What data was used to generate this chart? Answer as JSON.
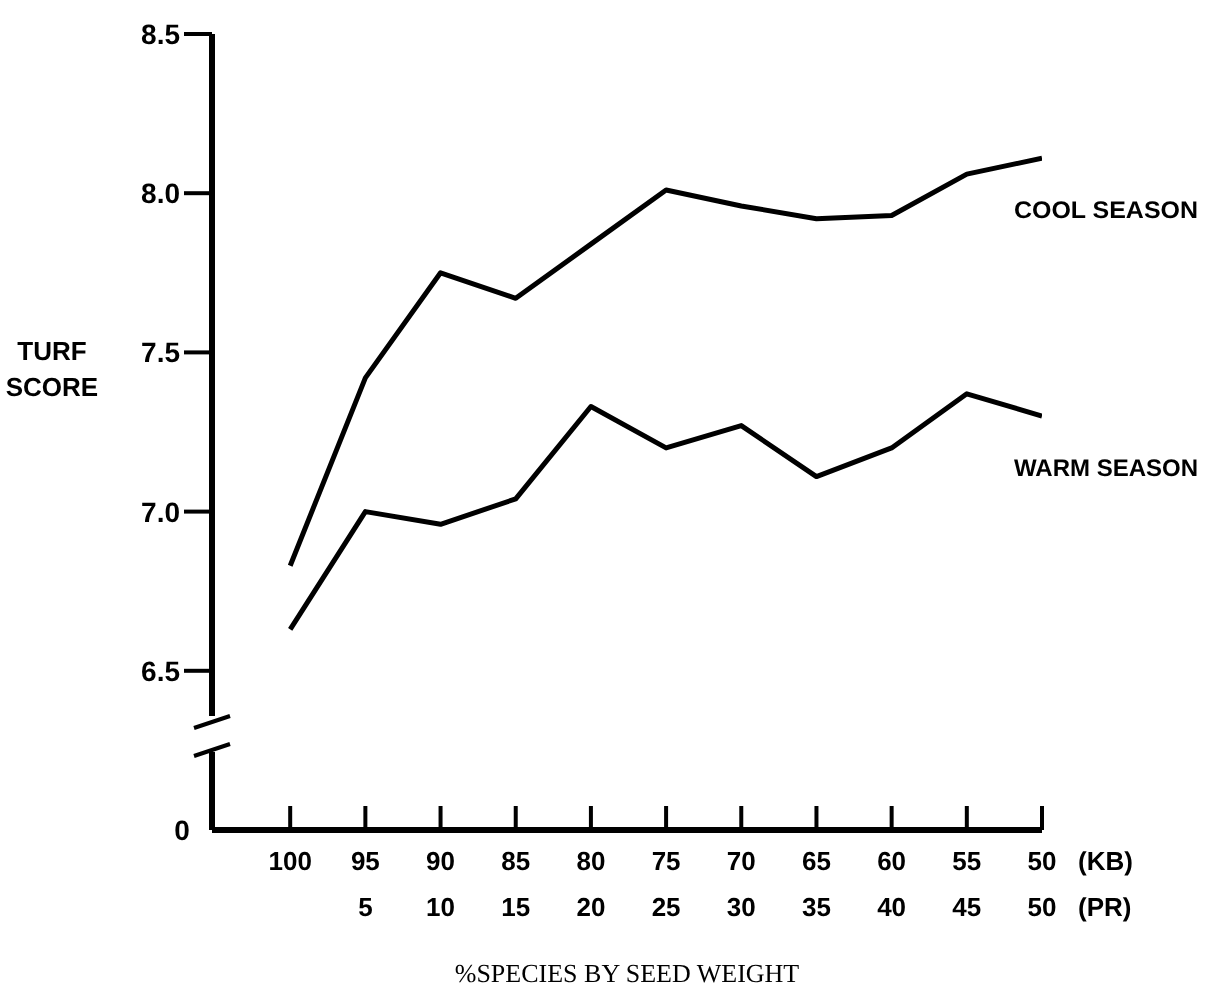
{
  "chart_data": {
    "type": "line",
    "ylabel": "TURF\nSCORE",
    "xlabel": "%SPECIES BY SEED WEIGHT",
    "categories": [
      "100",
      "95\n5",
      "90\n10",
      "85\n15",
      "80\n20",
      "75\n25",
      "70\n30",
      "65\n35",
      "60\n40",
      "55\n45",
      "50\n50"
    ],
    "series": [
      {
        "name": "COOL SEASON",
        "color": "#000000",
        "values": [
          6.83,
          7.42,
          7.75,
          7.67,
          7.84,
          8.01,
          7.96,
          7.92,
          7.93,
          8.06,
          8.11
        ]
      },
      {
        "name": "WARM SEASON",
        "color": "#000000",
        "values": [
          6.63,
          7.0,
          6.96,
          7.04,
          7.33,
          7.2,
          7.27,
          7.11,
          7.2,
          7.37,
          7.3
        ]
      }
    ],
    "ylim": [
      6.0,
      8.5
    ],
    "yticks": [
      6.5,
      {
        "value": 7,
        "label": "7.0"
      },
      7.5,
      {
        "value": 8,
        "label": "8.0"
      },
      8.5
    ],
    "annotations": [
      "0",
      "(KB)",
      "(PR)"
    ],
    "legend": false,
    "grid": false,
    "marker": "none",
    "line_style": "solid"
  }
}
